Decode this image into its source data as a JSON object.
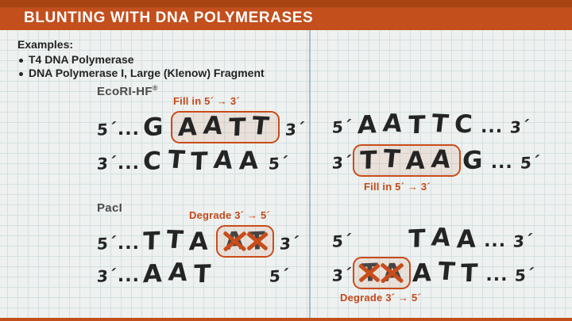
{
  "header": {
    "title": "BLUNTING WITH DNA POLYMERASES"
  },
  "examples": {
    "heading": "Examples:",
    "items": [
      "T4 DNA Polymerase",
      "DNA Polymerase I, Large (Klenow) Fragment"
    ]
  },
  "ecori": {
    "label": "EcoRI-HF",
    "label_sup": "®",
    "left": {
      "annotation": "Fill in 5´ → 3´",
      "top": {
        "end_left": "5´",
        "dots": "...",
        "pre": "G",
        "boxed": "AATT",
        "end_right": "3´"
      },
      "bottom": {
        "end_left": "3´",
        "dots": "...",
        "seq": "CTTAA",
        "end_right": "5´"
      }
    },
    "right": {
      "annotation": "Fill in 5´ → 3´",
      "top": {
        "end_left": "5´",
        "seq": "AATTC",
        "dots": "...",
        "end_right": "3´"
      },
      "bottom": {
        "end_left": "3´",
        "boxed": "TTAA",
        "post": "G",
        "dots": "...",
        "end_right": "5´"
      }
    }
  },
  "paci": {
    "label": "PacI",
    "left": {
      "annotation": "Degrade 3´ → 5´",
      "top": {
        "end_left": "5´",
        "dots": "...",
        "pre": "TTA",
        "crossed": [
          "A",
          "T"
        ],
        "end_right": "3´"
      },
      "bottom": {
        "end_left": "3´",
        "dots": "...",
        "seq": "AAT",
        "end_right": "5´"
      }
    },
    "right": {
      "annotation": "Degrade 3´ → 5´",
      "top": {
        "end_left": "5´",
        "seq": "TAA",
        "dots": "...",
        "end_right": "3´"
      },
      "bottom": {
        "end_left": "3´",
        "crossed": [
          "T",
          "A"
        ],
        "post": "ATT",
        "dots": "...",
        "end_right": "5´"
      }
    }
  },
  "colors": {
    "accent": "#c34f1d",
    "accent_dark": "#a84314",
    "annotation_text": "#c5491b",
    "box_border": "#c94c1a",
    "ink": "#242424",
    "label_gray": "#4a4a4a",
    "paper": "#eef1ef",
    "grid": "#d4e0e3",
    "fold_line": "#97b4bf",
    "title_text": "#ffffff"
  }
}
